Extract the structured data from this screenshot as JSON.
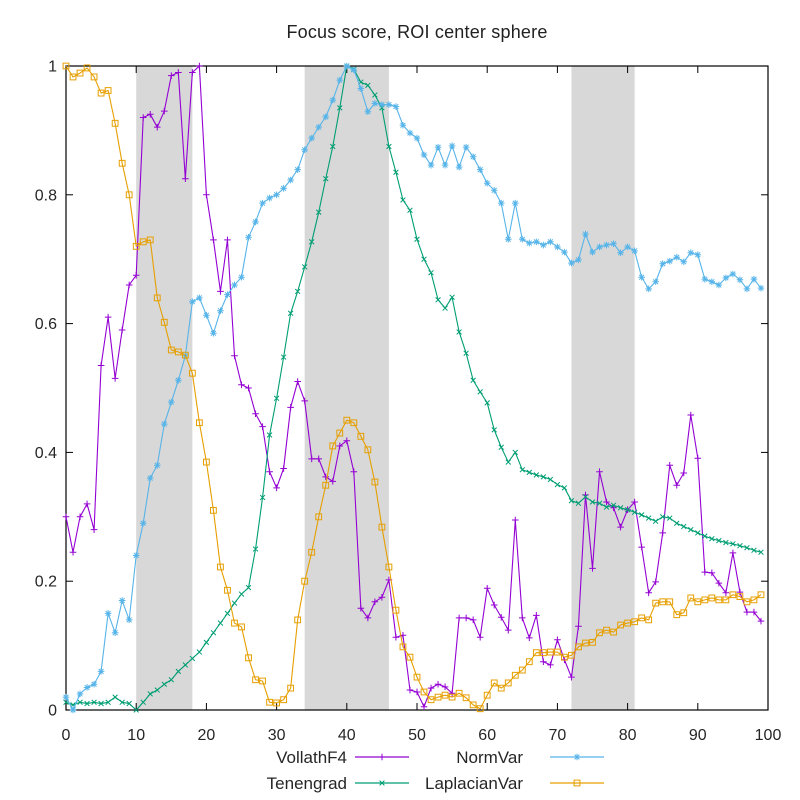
{
  "chart_data": {
    "type": "line",
    "title": "Focus score, ROI center sphere",
    "xlabel": "",
    "ylabel": "",
    "xlim": [
      0,
      100
    ],
    "ylim": [
      0,
      1
    ],
    "x_ticks": [
      0,
      10,
      20,
      30,
      40,
      50,
      60,
      70,
      80,
      90,
      100
    ],
    "y_ticks": [
      0,
      0.2,
      0.4,
      0.6,
      0.8,
      1
    ],
    "y_tick_labels": [
      "0",
      "0.2",
      "0.4",
      "0.6",
      "0.8",
      "1"
    ],
    "grid": false,
    "legend_position": "bottom-center-two-columns",
    "x_start": 0,
    "x_step": 1,
    "bands": [
      {
        "x0": 10,
        "x1": 18
      },
      {
        "x0": 34,
        "x1": 46
      },
      {
        "x0": 72,
        "x1": 81
      }
    ],
    "band_color": "#d8d8d8",
    "frame_color": "#000000",
    "text_color": "#262626",
    "series": [
      {
        "name": "VollathF4",
        "color": "#9400d3",
        "marker": "plus",
        "values": [
          0.3,
          0.245,
          0.3,
          0.32,
          0.28,
          0.535,
          0.61,
          0.515,
          0.59,
          0.66,
          0.675,
          0.92,
          0.925,
          0.905,
          0.93,
          0.985,
          0.99,
          0.825,
          0.99,
          1.0,
          0.8,
          0.73,
          0.65,
          0.73,
          0.55,
          0.505,
          0.5,
          0.46,
          0.44,
          0.37,
          0.345,
          0.375,
          0.47,
          0.51,
          0.48,
          0.39,
          0.39,
          0.362,
          0.355,
          0.41,
          0.418,
          0.37,
          0.158,
          0.143,
          0.168,
          0.175,
          0.202,
          0.113,
          0.116,
          0.031,
          0.028,
          0.005,
          0.034,
          0.04,
          0.036,
          0.026,
          0.143,
          0.143,
          0.14,
          0.113,
          0.189,
          0.163,
          0.144,
          0.124,
          0.295,
          0.143,
          0.112,
          0.147,
          0.075,
          0.07,
          0.109,
          0.078,
          0.051,
          0.13,
          0.334,
          0.22,
          0.37,
          0.323,
          0.314,
          0.284,
          0.311,
          0.323,
          0.253,
          0.182,
          0.199,
          0.275,
          0.38,
          0.349,
          0.368,
          0.458,
          0.391,
          0.214,
          0.213,
          0.197,
          0.182,
          0.244,
          0.183,
          0.152,
          0.152,
          0.138
        ]
      },
      {
        "name": "Tenengrad",
        "color": "#009e73",
        "marker": "cross",
        "values": [
          0.012,
          0.008,
          0.012,
          0.01,
          0.012,
          0.01,
          0.012,
          0.02,
          0.012,
          0.01,
          0.0,
          0.012,
          0.025,
          0.031,
          0.04,
          0.047,
          0.06,
          0.07,
          0.08,
          0.09,
          0.105,
          0.12,
          0.135,
          0.15,
          0.166,
          0.18,
          0.19,
          0.25,
          0.33,
          0.427,
          0.484,
          0.548,
          0.616,
          0.65,
          0.688,
          0.727,
          0.773,
          0.825,
          0.875,
          0.935,
          1.0,
          0.995,
          0.975,
          0.97,
          0.955,
          0.935,
          0.875,
          0.835,
          0.792,
          0.776,
          0.731,
          0.7,
          0.679,
          0.637,
          0.624,
          0.641,
          0.587,
          0.554,
          0.512,
          0.494,
          0.477,
          0.435,
          0.408,
          0.385,
          0.4,
          0.373,
          0.369,
          0.365,
          0.362,
          0.358,
          0.35,
          0.345,
          0.325,
          0.321,
          0.331,
          0.323,
          0.321,
          0.315,
          0.318,
          0.314,
          0.311,
          0.307,
          0.303,
          0.298,
          0.293,
          0.3,
          0.298,
          0.29,
          0.285,
          0.28,
          0.275,
          0.27,
          0.266,
          0.263,
          0.26,
          0.258,
          0.255,
          0.252,
          0.248,
          0.245
        ]
      },
      {
        "name": "NormVar",
        "color": "#56b4e9",
        "marker": "star",
        "values": [
          0.02,
          0.0,
          0.025,
          0.035,
          0.04,
          0.06,
          0.15,
          0.12,
          0.17,
          0.14,
          0.24,
          0.29,
          0.36,
          0.38,
          0.444,
          0.478,
          0.512,
          0.55,
          0.634,
          0.64,
          0.613,
          0.585,
          0.62,
          0.645,
          0.66,
          0.672,
          0.734,
          0.758,
          0.787,
          0.795,
          0.8,
          0.81,
          0.823,
          0.839,
          0.87,
          0.888,
          0.905,
          0.921,
          0.947,
          0.978,
          1.0,
          0.994,
          0.965,
          0.929,
          0.942,
          0.94,
          0.94,
          0.937,
          0.908,
          0.896,
          0.888,
          0.862,
          0.846,
          0.874,
          0.846,
          0.876,
          0.843,
          0.874,
          0.859,
          0.839,
          0.818,
          0.807,
          0.787,
          0.731,
          0.787,
          0.731,
          0.725,
          0.727,
          0.722,
          0.727,
          0.719,
          0.711,
          0.694,
          0.699,
          0.739,
          0.711,
          0.719,
          0.722,
          0.724,
          0.71,
          0.719,
          0.713,
          0.672,
          0.654,
          0.665,
          0.693,
          0.697,
          0.703,
          0.696,
          0.71,
          0.707,
          0.669,
          0.665,
          0.66,
          0.671,
          0.677,
          0.668,
          0.654,
          0.669,
          0.655
        ]
      },
      {
        "name": "LaplacianVar",
        "color": "#e69f00",
        "marker": "square",
        "values": [
          1.0,
          0.983,
          0.989,
          0.997,
          0.983,
          0.958,
          0.962,
          0.911,
          0.849,
          0.8,
          0.72,
          0.727,
          0.73,
          0.64,
          0.602,
          0.559,
          0.556,
          0.551,
          0.523,
          0.446,
          0.385,
          0.31,
          0.222,
          0.186,
          0.135,
          0.129,
          0.081,
          0.047,
          0.045,
          0.012,
          0.011,
          0.016,
          0.034,
          0.14,
          0.2,
          0.245,
          0.3,
          0.349,
          0.41,
          0.43,
          0.45,
          0.446,
          0.425,
          0.404,
          0.354,
          0.284,
          0.222,
          0.155,
          0.098,
          0.082,
          0.051,
          0.028,
          0.016,
          0.02,
          0.023,
          0.02,
          0.026,
          0.019,
          0.008,
          0.002,
          0.023,
          0.042,
          0.034,
          0.042,
          0.054,
          0.062,
          0.075,
          0.089,
          0.089,
          0.09,
          0.09,
          0.082,
          0.085,
          0.098,
          0.104,
          0.105,
          0.12,
          0.124,
          0.121,
          0.132,
          0.135,
          0.137,
          0.143,
          0.14,
          0.166,
          0.168,
          0.168,
          0.148,
          0.151,
          0.174,
          0.168,
          0.171,
          0.174,
          0.171,
          0.171,
          0.179,
          0.176,
          0.168,
          0.171,
          0.179
        ]
      }
    ]
  }
}
